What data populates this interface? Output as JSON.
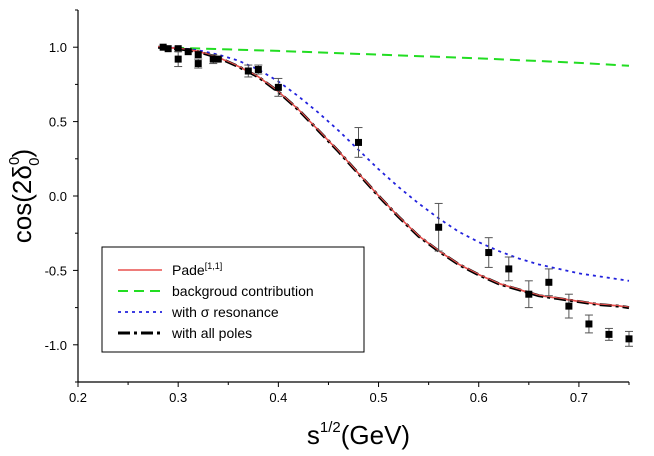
{
  "chart_data": {
    "type": "line",
    "title": "",
    "xlabel": {
      "base": "s",
      "sup": "1/2",
      "unit": "(GeV)"
    },
    "ylabel": {
      "prefix": "cos(2",
      "delta": "δ",
      "sup": "0",
      "sub": "0",
      "suffix": ")"
    },
    "xlim": [
      0.2,
      0.75
    ],
    "ylim": [
      -1.25,
      1.25
    ],
    "x_ticks": [
      0.2,
      0.3,
      0.4,
      0.5,
      0.6,
      0.7
    ],
    "x_tick_labels": [
      "0.2",
      "0.3",
      "0.4",
      "0.5",
      "0.6",
      "0.7"
    ],
    "y_ticks": [
      -1.0,
      -0.5,
      0.0,
      0.5,
      1.0
    ],
    "y_tick_labels": [
      "-1.0",
      "-0.5",
      "0.0",
      "0.5",
      "1.0"
    ],
    "grid": false,
    "legend_position": "bottom-left",
    "series": [
      {
        "name": "Pade",
        "name_sup": "[1,1]",
        "style": "solid",
        "color": "#e8504e",
        "x": [
          0.28,
          0.3,
          0.32,
          0.34,
          0.36,
          0.38,
          0.4,
          0.42,
          0.44,
          0.46,
          0.48,
          0.5,
          0.52,
          0.54,
          0.56,
          0.58,
          0.6,
          0.62,
          0.64,
          0.66,
          0.68,
          0.7,
          0.72,
          0.74,
          0.75
        ],
        "y": [
          1.0,
          0.99,
          0.97,
          0.93,
          0.87,
          0.8,
          0.7,
          0.58,
          0.44,
          0.3,
          0.15,
          0.0,
          -0.14,
          -0.27,
          -0.37,
          -0.46,
          -0.53,
          -0.59,
          -0.63,
          -0.67,
          -0.69,
          -0.71,
          -0.73,
          -0.74,
          -0.75
        ]
      },
      {
        "name": "backgroud contribution",
        "style": "dashed",
        "color": "#22dd22",
        "x": [
          0.28,
          0.35,
          0.4,
          0.5,
          0.6,
          0.7,
          0.75
        ],
        "y": [
          1.0,
          0.985,
          0.975,
          0.95,
          0.925,
          0.895,
          0.875
        ]
      },
      {
        "name": "with σ resonance",
        "style": "dotted",
        "color": "#2222dd",
        "x": [
          0.28,
          0.3,
          0.32,
          0.34,
          0.36,
          0.38,
          0.4,
          0.42,
          0.44,
          0.46,
          0.48,
          0.5,
          0.52,
          0.54,
          0.56,
          0.58,
          0.6,
          0.62,
          0.64,
          0.66,
          0.68,
          0.7,
          0.72,
          0.74,
          0.75
        ],
        "y": [
          1.0,
          0.995,
          0.98,
          0.95,
          0.91,
          0.85,
          0.77,
          0.67,
          0.56,
          0.44,
          0.31,
          0.18,
          0.06,
          -0.05,
          -0.15,
          -0.24,
          -0.31,
          -0.37,
          -0.42,
          -0.46,
          -0.49,
          -0.52,
          -0.54,
          -0.56,
          -0.57
        ]
      },
      {
        "name": "with all poles",
        "style": "dashdot",
        "color": "#000000",
        "x": [
          0.28,
          0.3,
          0.32,
          0.34,
          0.36,
          0.38,
          0.4,
          0.42,
          0.44,
          0.46,
          0.48,
          0.5,
          0.52,
          0.54,
          0.56,
          0.58,
          0.6,
          0.62,
          0.64,
          0.66,
          0.68,
          0.7,
          0.72,
          0.74,
          0.75
        ],
        "y": [
          1.0,
          0.99,
          0.97,
          0.93,
          0.87,
          0.8,
          0.7,
          0.58,
          0.44,
          0.3,
          0.15,
          0.0,
          -0.14,
          -0.27,
          -0.37,
          -0.46,
          -0.53,
          -0.59,
          -0.63,
          -0.67,
          -0.69,
          -0.71,
          -0.73,
          -0.74,
          -0.75
        ]
      }
    ],
    "data_points": {
      "name": "data",
      "color": "#000000",
      "x": [
        0.285,
        0.29,
        0.3,
        0.3,
        0.31,
        0.32,
        0.32,
        0.335,
        0.34,
        0.37,
        0.38,
        0.4,
        0.48,
        0.56,
        0.61,
        0.63,
        0.65,
        0.67,
        0.69,
        0.71,
        0.73,
        0.75
      ],
      "y": [
        1.0,
        0.99,
        0.99,
        0.92,
        0.97,
        0.95,
        0.89,
        0.92,
        0.92,
        0.84,
        0.85,
        0.73,
        0.36,
        -0.21,
        -0.38,
        -0.49,
        -0.66,
        -0.58,
        -0.74,
        -0.86,
        -0.93,
        -0.96
      ],
      "err": [
        0.0,
        0.0,
        0.0,
        0.05,
        0.0,
        0.0,
        0.03,
        0.03,
        0.0,
        0.04,
        0.03,
        0.06,
        0.1,
        0.16,
        0.1,
        0.08,
        0.09,
        0.09,
        0.08,
        0.06,
        0.04,
        0.05
      ]
    }
  }
}
